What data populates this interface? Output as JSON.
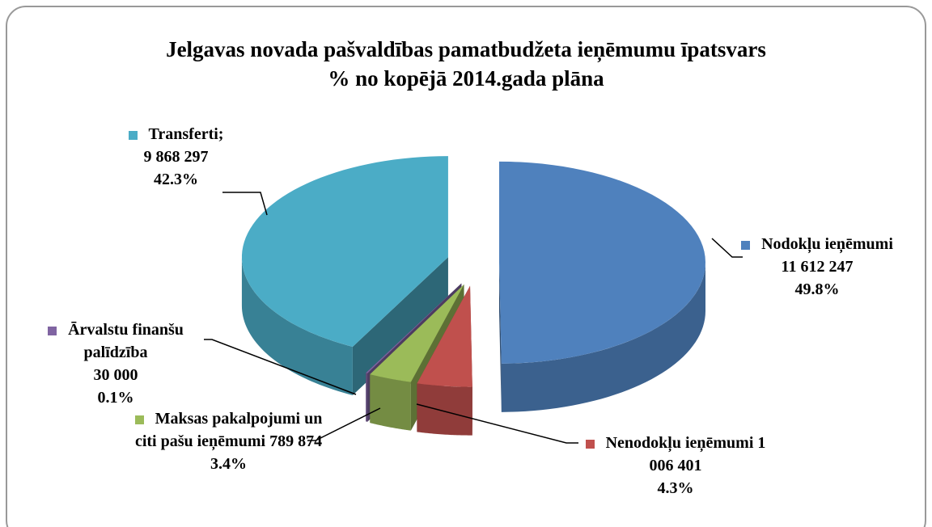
{
  "chart_data": {
    "type": "pie3d",
    "title": "Jelgavas novada pašvaldības pamatbudžeta ieņēmumu īpatsvars",
    "subtitle": "% no kopējā 2014.gada plāna",
    "categories": [
      "Nodokļu ieņēmumi",
      "Nenodokļu ieņēmumi",
      "Maksas pakalpojumi un citi pašu ieņēmumi",
      "Ārvalstu finanšu palīdzība",
      "Transferti;"
    ],
    "values": [
      11612247,
      1006401,
      789874,
      30000,
      9868297
    ],
    "value_labels": [
      "11 612 247",
      "1 006 401",
      "789 874",
      "30 000",
      "9 868 297"
    ],
    "percents": [
      49.8,
      4.3,
      3.4,
      0.1,
      42.3
    ],
    "percent_labels": [
      "49.8%",
      "4.3%",
      "3.4%",
      "0.1%",
      "42.3%"
    ],
    "colors": [
      "#4f81bd",
      "#c0504d",
      "#9bbb59",
      "#8064a2",
      "#4bacc6"
    ],
    "exploded": true
  }
}
